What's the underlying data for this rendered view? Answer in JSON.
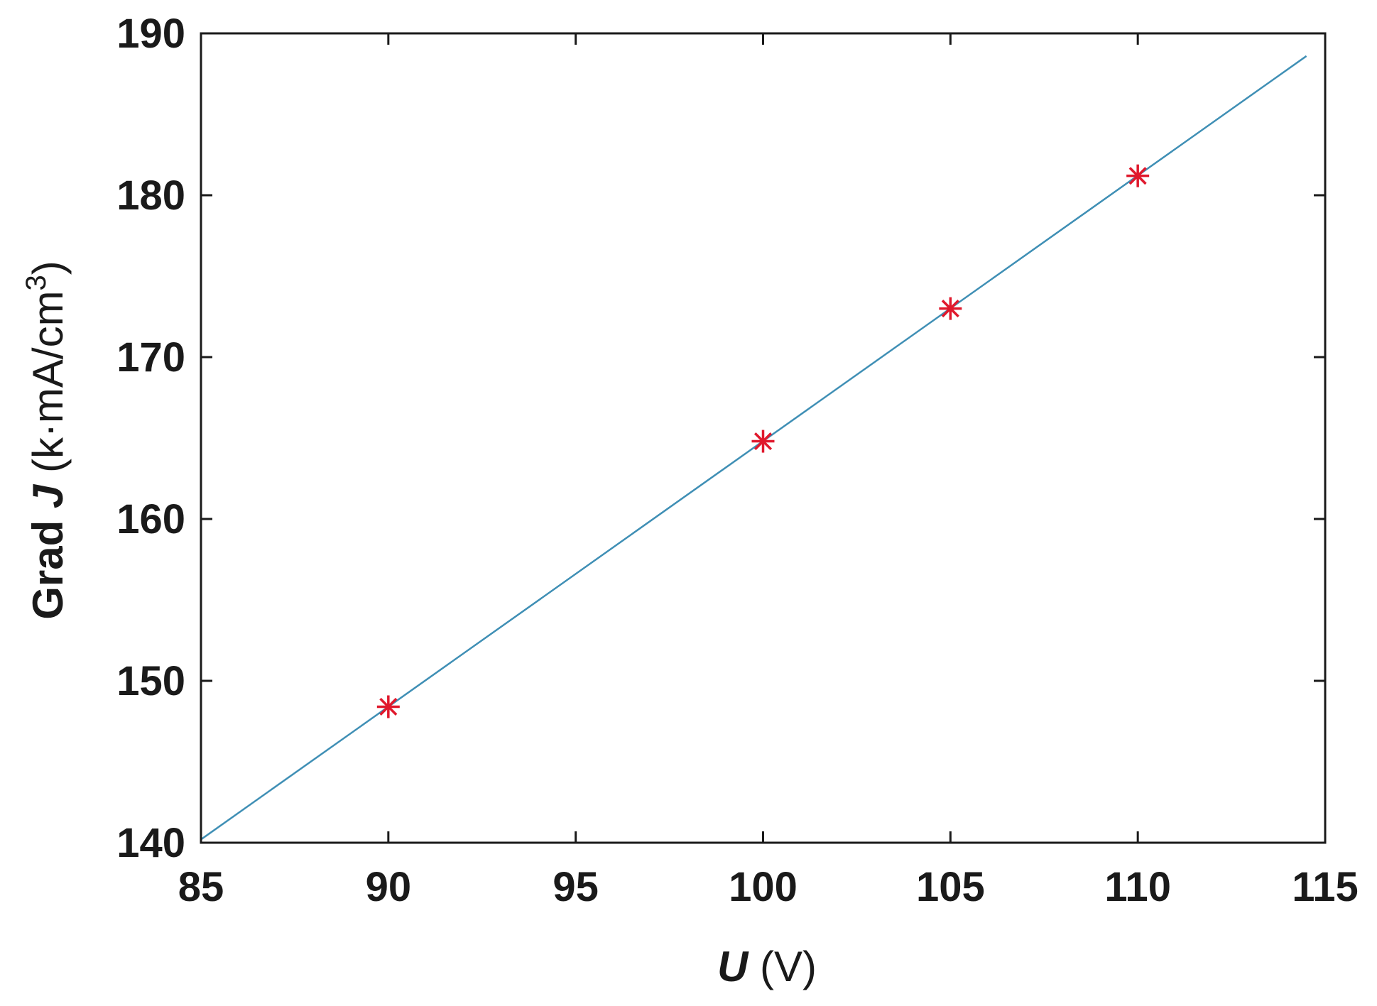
{
  "chart_data": {
    "type": "scatter",
    "xlabel": {
      "symbol": "U",
      "unit": " (V)"
    },
    "ylabel": {
      "prefix": "Grad ",
      "symbol": "J",
      "unit": " (k·mA/cm",
      "superscript": "3",
      "close": ")"
    },
    "xlim": [
      85,
      115
    ],
    "ylim": [
      140,
      190
    ],
    "x_ticks": [
      85,
      90,
      95,
      100,
      105,
      110,
      115
    ],
    "y_ticks": [
      140,
      150,
      160,
      170,
      180,
      190
    ],
    "grid": false,
    "series": [
      {
        "kind": "points",
        "marker": "asterisk",
        "color": "#e0192d",
        "x": [
          90,
          100,
          105,
          110
        ],
        "y": [
          148.4,
          164.8,
          173.0,
          181.2
        ]
      },
      {
        "kind": "line",
        "color": "#3f8fb5",
        "x": [
          85,
          114.5
        ],
        "y": [
          140.2,
          188.6
        ]
      }
    ],
    "colors": {
      "axis": "#1a1a1a",
      "fit_line": "#3f8fb5",
      "marker": "#e0192d"
    }
  }
}
